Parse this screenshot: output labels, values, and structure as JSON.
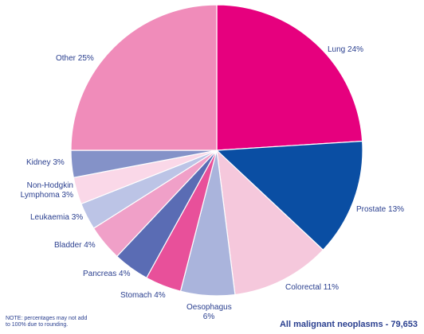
{
  "chart_data": {
    "type": "pie",
    "title": "",
    "start_angle_deg": 0,
    "direction": "clockwise",
    "slices": [
      {
        "label": "Lung 24%",
        "value": 24,
        "color": "#e6007e"
      },
      {
        "label": "Prostate 13%",
        "value": 13,
        "color": "#0a4ea3"
      },
      {
        "label": "Colorectal 11%",
        "value": 11,
        "color": "#f5c8dc"
      },
      {
        "label_line1": "Oesophagus",
        "label_line2": "6%",
        "value": 6,
        "color": "#aab4dc"
      },
      {
        "label": "Stomach 4%",
        "value": 4,
        "color": "#e8509a"
      },
      {
        "label": "Pancreas 4%",
        "value": 4,
        "color": "#5a6cb4"
      },
      {
        "label": "Bladder 4%",
        "value": 4,
        "color": "#f0a0c8"
      },
      {
        "label": "Leukaemia 3%",
        "value": 3,
        "color": "#bcc4e6"
      },
      {
        "label_line1": "Non-Hodgkin",
        "label_line2": "Lymphoma 3%",
        "value": 3,
        "color": "#fad8e8"
      },
      {
        "label": "Kidney 3%",
        "value": 3,
        "color": "#8492c8"
      },
      {
        "label": "Other 25%",
        "value": 25,
        "color": "#f08cba"
      }
    ]
  },
  "footnote": "NOTE: percentages may not add to 100% due to rounding.",
  "total": "All malignant neoplasms - 79,653"
}
